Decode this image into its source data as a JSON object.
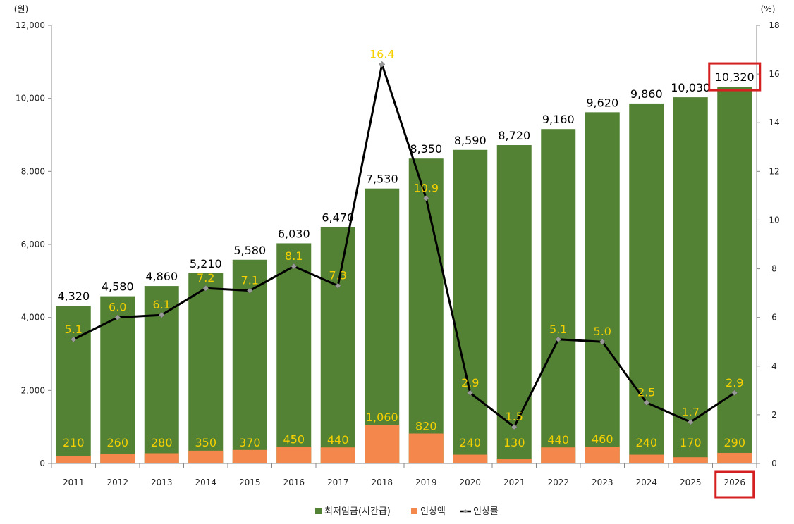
{
  "chart_data": {
    "type": "bar",
    "left_axis_unit": "(원)",
    "right_axis_unit": "(%)",
    "categories": [
      "2011",
      "2012",
      "2013",
      "2014",
      "2015",
      "2016",
      "2017",
      "2018",
      "2019",
      "2020",
      "2021",
      "2022",
      "2023",
      "2024",
      "2025",
      "2026"
    ],
    "series": [
      {
        "name": "최저임금(시간급)",
        "kind": "bar",
        "color": "#548235",
        "values": [
          4320,
          4580,
          4860,
          5210,
          5580,
          6030,
          6470,
          7530,
          8350,
          8590,
          8720,
          9160,
          9620,
          9860,
          10030,
          10320
        ],
        "labels": [
          "4,320",
          "4,580",
          "4,860",
          "5,210",
          "5,580",
          "6,030",
          "6,470",
          "7,530",
          "8,350",
          "8,590",
          "8,720",
          "9,160",
          "9,620",
          "9,860",
          "10,030",
          "10,320"
        ]
      },
      {
        "name": "인상액",
        "kind": "bar",
        "color": "#f4874b",
        "values": [
          210,
          260,
          280,
          350,
          370,
          450,
          440,
          1060,
          820,
          240,
          130,
          440,
          460,
          240,
          170,
          290
        ],
        "labels": [
          "210",
          "260",
          "280",
          "350",
          "370",
          "450",
          "440",
          "1,060",
          "820",
          "240",
          "130",
          "440",
          "460",
          "240",
          "170",
          "290"
        ]
      },
      {
        "name": "인상률",
        "kind": "line",
        "axis": "right",
        "color": "#000000",
        "values": [
          5.1,
          6.0,
          6.1,
          7.2,
          7.1,
          8.1,
          7.3,
          16.4,
          10.9,
          2.9,
          1.5,
          5.1,
          5.0,
          2.5,
          1.7,
          2.9
        ],
        "labels": [
          "5.1",
          "6.0",
          "6.1",
          "7.2",
          "7.1",
          "8.1",
          "7.3",
          "16.4",
          "10.9",
          "2.9",
          "1.5",
          "5.1",
          "5.0",
          "2.5",
          "1.7",
          "2.9"
        ]
      }
    ],
    "y_left": {
      "min": 0,
      "max": 12000,
      "ticks": [
        "0",
        "2,000",
        "4,000",
        "6,000",
        "8,000",
        "10,000",
        "12,000"
      ]
    },
    "y_right": {
      "min": 0,
      "max": 18,
      "ticks": [
        "0",
        "2",
        "4",
        "6",
        "8",
        "10",
        "12",
        "14",
        "16",
        "18"
      ]
    },
    "highlight_index": 15,
    "highlight_color": "#d42020",
    "legend_position": "bottom-center"
  }
}
